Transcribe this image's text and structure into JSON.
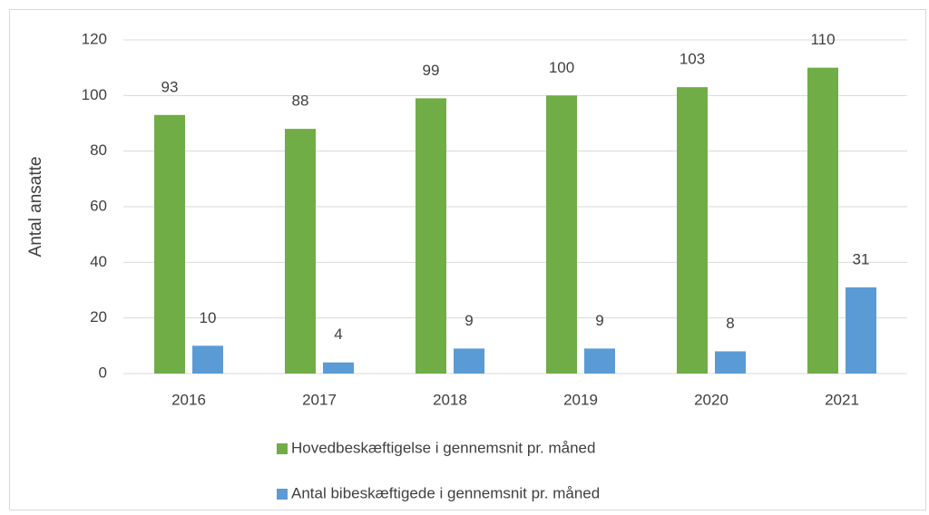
{
  "chart_data": {
    "type": "bar",
    "ylabel": "Antal ansatte",
    "categories": [
      "2016",
      "2017",
      "2018",
      "2019",
      "2020",
      "2021"
    ],
    "series": [
      {
        "name": "Hovedbeskæftigelse i gennemsnit pr. måned",
        "color": "#70ad47",
        "values": [
          93,
          88,
          99,
          100,
          103,
          110
        ]
      },
      {
        "name": "Antal bibeskæftigede i gennemsnit pr. måned",
        "color": "#5b9bd5",
        "values": [
          10,
          4,
          9,
          9,
          8,
          31
        ]
      }
    ],
    "ylim": [
      0,
      120
    ],
    "yticks": [
      0,
      20,
      40,
      60,
      80,
      100,
      120
    ],
    "grid": true,
    "legend": "bottom"
  }
}
